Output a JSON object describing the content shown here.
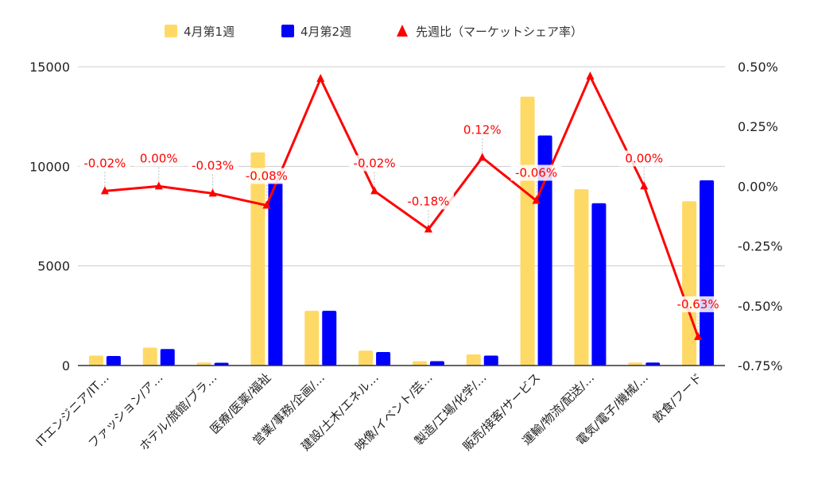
{
  "chart_data": {
    "type": "bar",
    "legend_position": "top",
    "grid": true,
    "categories": [
      "ITエンジニア/IT…",
      "ファッション/ア…",
      "ホテル/旅館/ブラ…",
      "医療/医薬/福祉",
      "営業/事務/企画/…",
      "建設/土木/エネル…",
      "映像/イベント/芸…",
      "製造/工場/化学/…",
      "販売/接客/サービス",
      "運輸/物流/配送/…",
      "電気/電子/機械/…",
      "飲食/フード"
    ],
    "series": [
      {
        "name": "4月第1週",
        "type": "bar",
        "axis": "left",
        "color": "#ffd966",
        "values": [
          500,
          900,
          150,
          10700,
          2750,
          750,
          220,
          560,
          13500,
          8850,
          150,
          8250
        ]
      },
      {
        "name": "4月第2週",
        "type": "bar",
        "axis": "left",
        "color": "#0000ff",
        "values": [
          480,
          830,
          140,
          9200,
          2750,
          680,
          220,
          500,
          11550,
          8150,
          150,
          9300
        ]
      },
      {
        "name": "先週比（マーケットシェア率）",
        "type": "line",
        "axis": "right",
        "color": "#ff0000",
        "values": [
          -0.02,
          0.0,
          -0.03,
          -0.08,
          0.45,
          -0.02,
          -0.18,
          0.12,
          -0.06,
          0.46,
          0.0,
          -0.63
        ],
        "labels": [
          "-0.02%",
          "0.00%",
          "-0.03%",
          "-0.08%",
          "",
          "-0.02%",
          "-0.18%",
          "0.12%",
          "-0.06%",
          "",
          "0.00%",
          "-0.63%"
        ]
      }
    ],
    "y_left": {
      "range": [
        0,
        15000
      ],
      "ticks": [
        "0",
        "5000",
        "10000",
        "15000"
      ]
    },
    "y_right": {
      "range": [
        -0.75,
        0.5
      ],
      "ticks": [
        "-0.75%",
        "-0.50%",
        "-0.25%",
        "0.00%",
        "0.25%",
        "0.50%"
      ]
    }
  }
}
